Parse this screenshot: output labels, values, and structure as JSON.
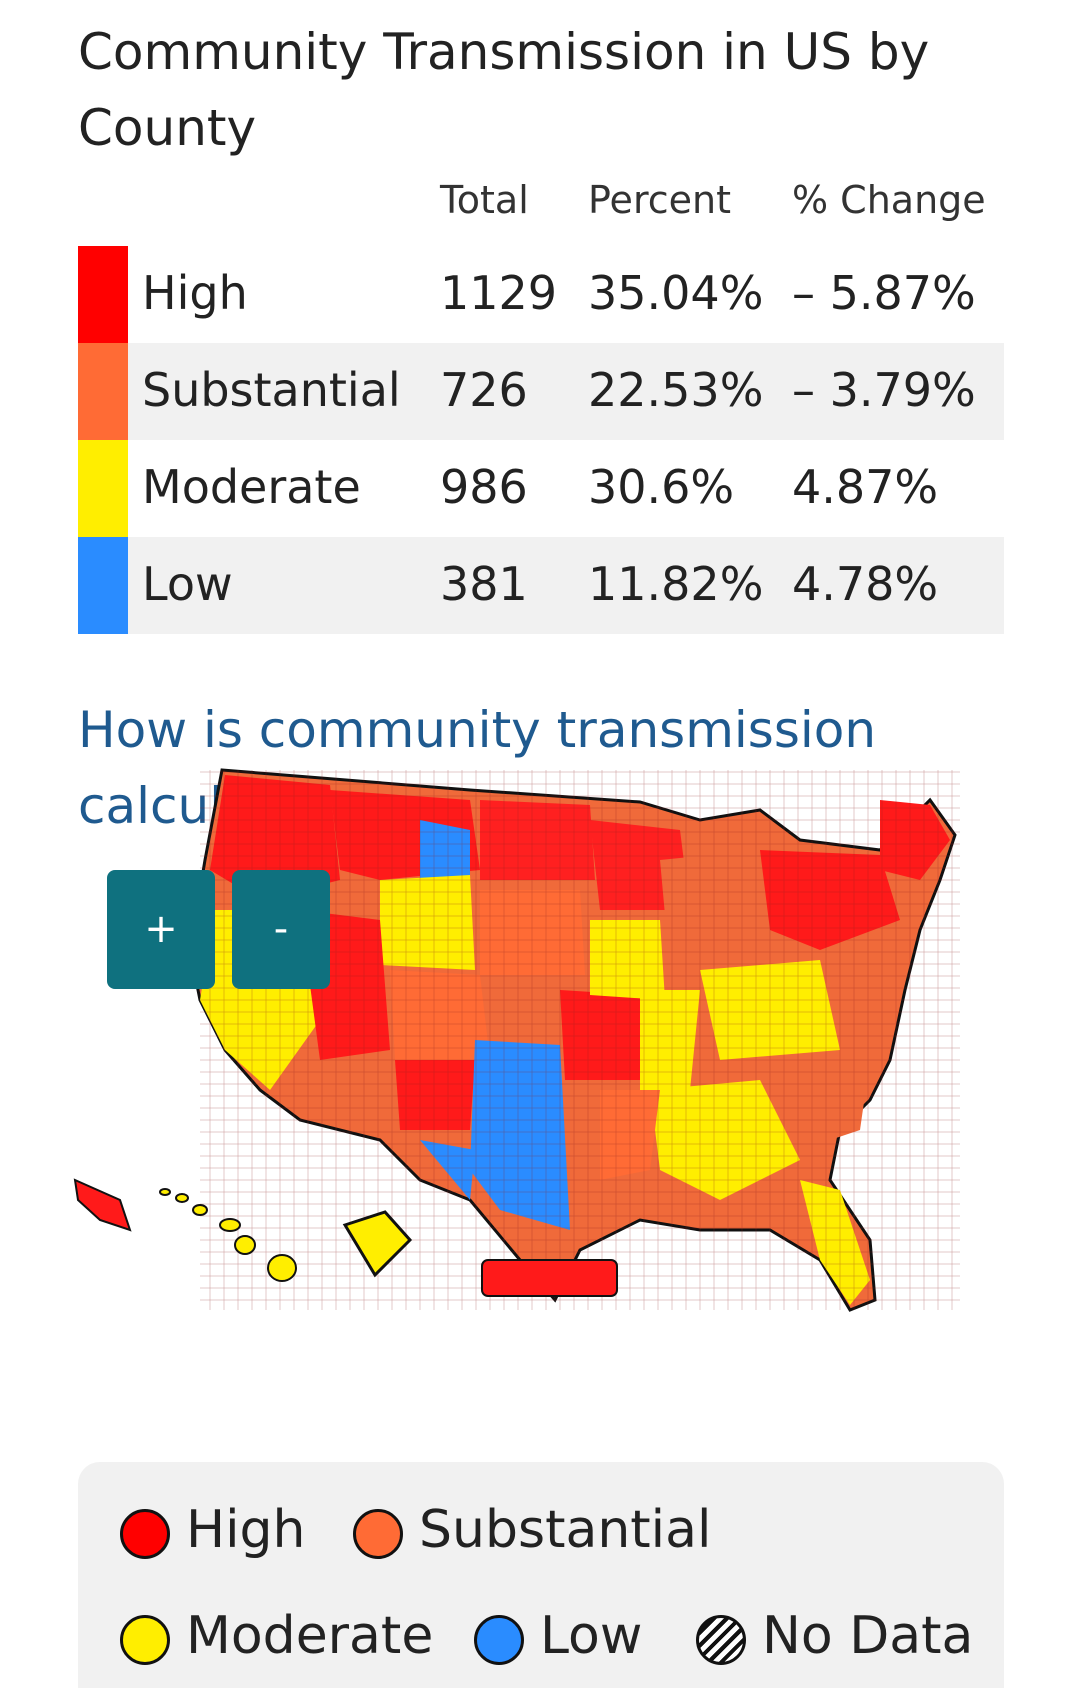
{
  "title": "Community Transmission in US by County",
  "table": {
    "headers": [
      "Total",
      "Percent",
      "% Change"
    ],
    "rows": [
      {
        "level": "High",
        "total": "1129",
        "percent": "35.04%",
        "change": "– 5.87%",
        "color": "#ff0000"
      },
      {
        "level": "Substantial",
        "total": "726",
        "percent": "22.53%",
        "change": "– 3.79%",
        "color": "#ff6b35"
      },
      {
        "level": "Moderate",
        "total": "986",
        "percent": "30.6%",
        "change": "4.87%",
        "color": "#ffee00"
      },
      {
        "level": "Low",
        "total": "381",
        "percent": "11.82%",
        "change": "4.78%",
        "color": "#2a8cff"
      }
    ]
  },
  "link_text": "How is community transmission calculated?",
  "zoom": {
    "in_label": "+",
    "out_label": "-"
  },
  "legend": {
    "items": [
      {
        "label": "High",
        "color": "#ff0000"
      },
      {
        "label": "Substantial",
        "color": "#ff6b35"
      },
      {
        "label": "Moderate",
        "color": "#ffee00"
      },
      {
        "label": "Low",
        "color": "#2a8cff"
      },
      {
        "label": "No Data",
        "color": "hatched"
      }
    ]
  }
}
